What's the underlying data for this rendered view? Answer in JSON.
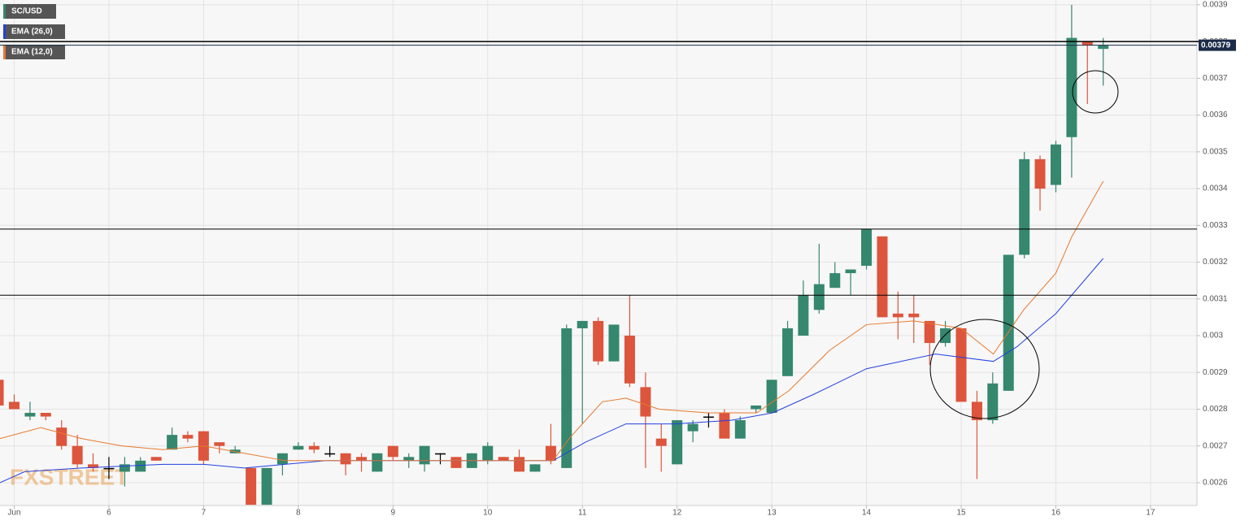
{
  "chart_data": {
    "type": "candlestick",
    "name": "SC/USD",
    "up_color": "#35876e",
    "down_color": "#dc553c",
    "doji_color": "#000000",
    "x": [
      4.833,
      5,
      5.167,
      5.333,
      5.5,
      5.667,
      5.833,
      6,
      6.167,
      6.333,
      6.5,
      6.667,
      6.833,
      7,
      7.167,
      7.333,
      7.5,
      7.667,
      7.833,
      8,
      8.167,
      8.333,
      8.5,
      8.667,
      8.833,
      9,
      9.167,
      9.333,
      9.5,
      9.667,
      9.833,
      10,
      10.167,
      10.333,
      10.5,
      10.667,
      10.833,
      11,
      11.167,
      11.333,
      11.5,
      11.667,
      11.833,
      12,
      12.167,
      12.333,
      12.5,
      12.667,
      12.833,
      13,
      13.167,
      13.333,
      13.5,
      13.667,
      13.833,
      14,
      14.167,
      14.333,
      14.5,
      14.667,
      14.833,
      15,
      15.167,
      15.333,
      15.5,
      15.667,
      15.833,
      16,
      16.167,
      16.333,
      16.5
    ],
    "open": [
      0.00288,
      0.00282,
      0.00278,
      0.00279,
      0.00275,
      0.0027,
      0.00265,
      0.00264,
      0.00263,
      0.00263,
      0.00267,
      0.00269,
      0.00273,
      0.00274,
      0.00271,
      0.00268,
      0.00264,
      0.00254,
      0.00265,
      0.00269,
      0.0027,
      0.00268,
      0.00268,
      0.00267,
      0.00263,
      0.0027,
      0.00266,
      0.00265,
      0.00268,
      0.00267,
      0.00264,
      0.00266,
      0.00267,
      0.00267,
      0.00263,
      0.0027,
      0.00264,
      0.00302,
      0.00304,
      0.00293,
      0.003,
      0.00286,
      0.00272,
      0.00265,
      0.00274,
      0.00278,
      0.00279,
      0.00272,
      0.0028,
      0.00279,
      0.00289,
      0.003,
      0.00307,
      0.00313,
      0.00317,
      0.00319,
      0.00327,
      0.00306,
      0.00306,
      0.00304,
      0.00298,
      0.00302,
      0.00282,
      0.00277,
      0.00285,
      0.00322,
      0.00348,
      0.00341,
      0.00354,
      0.0038,
      0.00378
    ],
    "high": [
      0.00288,
      0.00284,
      0.00282,
      0.00279,
      0.00277,
      0.00273,
      0.00268,
      0.00267,
      0.00267,
      0.00267,
      0.00267,
      0.00275,
      0.00274,
      0.00274,
      0.00271,
      0.0027,
      0.00264,
      0.00264,
      0.00268,
      0.00271,
      0.00271,
      0.0027,
      0.00268,
      0.00268,
      0.00268,
      0.0027,
      0.00268,
      0.0027,
      0.00268,
      0.00267,
      0.00268,
      0.00271,
      0.00267,
      0.00269,
      0.00265,
      0.00276,
      0.00303,
      0.00304,
      0.00305,
      0.00303,
      0.00311,
      0.0029,
      0.00276,
      0.00277,
      0.00277,
      0.00279,
      0.0028,
      0.00278,
      0.00281,
      0.00288,
      0.00304,
      0.00315,
      0.00325,
      0.0032,
      0.00318,
      0.00329,
      0.00327,
      0.00312,
      0.00311,
      0.00304,
      0.00304,
      0.00302,
      0.00285,
      0.0029,
      0.00322,
      0.0035,
      0.00349,
      0.00353,
      0.0039,
      0.0038,
      0.00381
    ],
    "low": [
      0.00281,
      0.0028,
      0.00277,
      0.00277,
      0.00269,
      0.00264,
      0.00263,
      0.00261,
      0.00259,
      0.00263,
      0.00266,
      0.00269,
      0.00271,
      0.00265,
      0.00268,
      0.00268,
      0.00254,
      0.00254,
      0.00262,
      0.00269,
      0.00268,
      0.00267,
      0.00262,
      0.00263,
      0.00263,
      0.00266,
      0.00264,
      0.00263,
      0.00265,
      0.00264,
      0.00264,
      0.00265,
      0.00266,
      0.00263,
      0.00263,
      0.00265,
      0.00264,
      0.00276,
      0.00292,
      0.00293,
      0.00286,
      0.00264,
      0.00263,
      0.00265,
      0.00271,
      0.00275,
      0.00272,
      0.00272,
      0.00279,
      0.00279,
      0.00289,
      0.003,
      0.00306,
      0.00313,
      0.00311,
      0.00318,
      0.00305,
      0.00299,
      0.00298,
      0.00292,
      0.00297,
      0.00282,
      0.00261,
      0.00276,
      0.00285,
      0.00321,
      0.00334,
      0.00339,
      0.00343,
      0.00363,
      0.00368
    ],
    "close": [
      0.00281,
      0.0028,
      0.00279,
      0.00278,
      0.0027,
      0.00265,
      0.00264,
      0.00264,
      0.00265,
      0.00266,
      0.00266,
      0.00273,
      0.00272,
      0.00266,
      0.0027,
      0.00269,
      0.00254,
      0.00264,
      0.00268,
      0.0027,
      0.00269,
      0.00268,
      0.00265,
      0.00266,
      0.00268,
      0.00267,
      0.00267,
      0.0027,
      0.00268,
      0.00264,
      0.00268,
      0.0027,
      0.00266,
      0.00263,
      0.00265,
      0.00266,
      0.00302,
      0.00304,
      0.00293,
      0.00303,
      0.00287,
      0.00278,
      0.0027,
      0.00277,
      0.00276,
      0.00278,
      0.00272,
      0.00277,
      0.00281,
      0.00288,
      0.00302,
      0.00311,
      0.00314,
      0.00317,
      0.00318,
      0.00329,
      0.00305,
      0.00305,
      0.00305,
      0.00298,
      0.00302,
      0.00282,
      0.00277,
      0.00287,
      0.00322,
      0.00348,
      0.0034,
      0.00352,
      0.00381,
      0.00379,
      0.00379
    ],
    "series": [
      {
        "name": "EMA (26,0)",
        "color": "#2340e0",
        "x": [
          4.85,
          5.11,
          5.71,
          6.57,
          7.0,
          7.43,
          8.29,
          9.14,
          10.0,
          10.69,
          11.03,
          11.46,
          11.98,
          12.58,
          13.01,
          13.44,
          14.0,
          14.73,
          15.34,
          15.59,
          16.0,
          16.5
        ],
        "values": [
          0.0026,
          0.00263,
          0.00264,
          0.00265,
          0.00265,
          0.00264,
          0.00266,
          0.00266,
          0.00266,
          0.00266,
          0.00271,
          0.00276,
          0.00276,
          0.00277,
          0.00279,
          0.00284,
          0.00291,
          0.00295,
          0.00293,
          0.00297,
          0.00306,
          0.00321
        ]
      },
      {
        "name": "EMA (12,0)",
        "color": "#e8792e",
        "x": [
          4.85,
          5.28,
          5.71,
          6.14,
          6.57,
          7.0,
          7.43,
          7.86,
          8.71,
          10.0,
          10.69,
          10.86,
          11.21,
          11.46,
          11.81,
          12.32,
          12.84,
          13.18,
          13.61,
          14.0,
          14.5,
          15.0,
          15.34,
          15.66,
          16.0,
          16.17,
          16.5
        ],
        "values": [
          0.00272,
          0.00275,
          0.00272,
          0.0027,
          0.00269,
          0.0027,
          0.00268,
          0.00266,
          0.00266,
          0.00266,
          0.00266,
          0.00272,
          0.00282,
          0.00283,
          0.0028,
          0.00279,
          0.00279,
          0.00285,
          0.00296,
          0.00303,
          0.00304,
          0.00302,
          0.00295,
          0.00307,
          0.00317,
          0.00327,
          0.00342
        ]
      }
    ],
    "xlim": [
      4.85,
      17.49
    ],
    "xticks": [
      {
        "value": 5,
        "label": "Jun"
      },
      6,
      7,
      8,
      9,
      10,
      11,
      12,
      13,
      14,
      15,
      16,
      17
    ],
    "ylim": [
      0.002538,
      0.003913
    ],
    "yticks": [
      0.0026,
      0.0027,
      0.0028,
      0.0029,
      0.003,
      0.0031,
      0.0032,
      0.0033,
      0.0034,
      0.0035,
      0.0036,
      0.0037,
      0.0038,
      0.0039
    ],
    "hlines": [
      0.0038,
      0.00329,
      0.00311
    ],
    "last_price": 0.00379,
    "grid": true,
    "watermark": "FXSTREET"
  }
}
